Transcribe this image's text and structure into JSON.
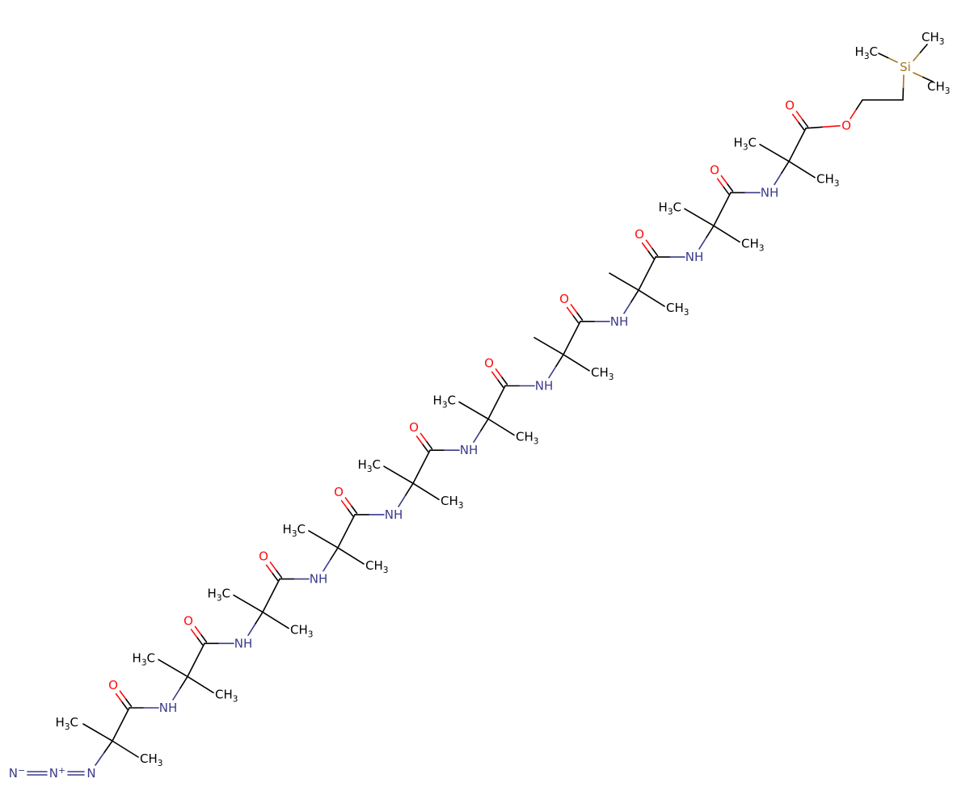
{
  "colors": {
    "carbon": "#000000",
    "oxygen": "#ff0d0d",
    "nitrogen": "#3a3a8c",
    "silicon": "#a07a1e",
    "background": "#ffffff"
  },
  "labels": {
    "oxygen": "O",
    "amine": "NH",
    "methyl_prefix": "H",
    "methyl_suffix": "C",
    "methyl_right": "CH",
    "subscript_3": "3",
    "silicon": "Si",
    "azide_n1": "N",
    "azide_n2": "N",
    "azide_n3": "N",
    "minus": "−",
    "plus": "+"
  }
}
